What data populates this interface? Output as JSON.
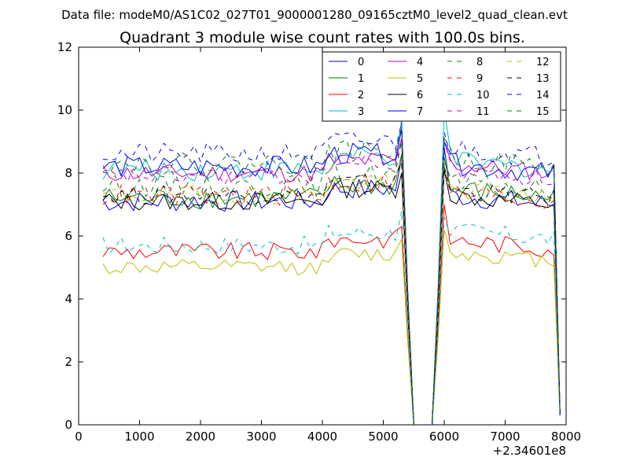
{
  "header": {
    "data_file": "Data file: modeM0/AS1C02_027T01_9000001280_09165cztM0_level2_quad_clean.evt"
  },
  "chart_data": {
    "type": "line",
    "title": "Quadrant 3 module wise count rates with 100.0s bins.",
    "xlabel": "",
    "ylabel": "",
    "x_offset_label": "+2.34601e8",
    "xlim": [
      0,
      8000
    ],
    "ylim": [
      0,
      12
    ],
    "xticks": [
      0,
      1000,
      2000,
      3000,
      4000,
      5000,
      6000,
      7000,
      8000
    ],
    "yticks": [
      0,
      2,
      4,
      6,
      8,
      10,
      12
    ],
    "grid": false,
    "legend_position": "top-right",
    "legend_columns": 4,
    "x": [
      400,
      500,
      600,
      700,
      800,
      900,
      1000,
      1100,
      1200,
      1300,
      1400,
      1500,
      1600,
      1700,
      1800,
      1900,
      2000,
      2100,
      2200,
      2300,
      2400,
      2500,
      2600,
      2700,
      2800,
      2900,
      3000,
      3100,
      3200,
      3300,
      3400,
      3500,
      3600,
      3700,
      3800,
      3900,
      4000,
      4100,
      4200,
      4300,
      4400,
      4500,
      4600,
      4700,
      4800,
      4900,
      5000,
      5100,
      5200,
      5300,
      5400,
      5500,
      5600,
      5700,
      5800,
      5900,
      6000,
      6100,
      6200,
      6300,
      6400,
      6500,
      6600,
      6700,
      6800,
      6900,
      7000,
      7100,
      7200,
      7300,
      7400,
      7500,
      7600,
      7700,
      7800,
      7900
    ],
    "gap_x": [
      5500,
      5800
    ],
    "series": [
      {
        "name": "0",
        "style": "solid",
        "color": "#0000ff",
        "base": 7.1,
        "noise": 0.35,
        "peak1": 8.5,
        "peak2": 8.8,
        "post": 7.0,
        "end": 6.6
      },
      {
        "name": "1",
        "style": "solid",
        "color": "#008000",
        "base": 7.2,
        "noise": 0.35,
        "peak1": 8.6,
        "peak2": 8.5,
        "post": 7.2,
        "end": 6.8
      },
      {
        "name": "2",
        "style": "solid",
        "color": "#ff0000",
        "base": 5.5,
        "noise": 0.3,
        "peak1": 6.3,
        "peak2": 7.0,
        "post": 5.6,
        "end": 5.2
      },
      {
        "name": "3",
        "style": "solid",
        "color": "#00bfbf",
        "base": 8.1,
        "noise": 0.35,
        "peak1": 9.7,
        "peak2": 10.0,
        "post": 8.1,
        "end": 7.6
      },
      {
        "name": "4",
        "style": "solid",
        "color": "#bf00bf",
        "base": 8.0,
        "noise": 0.3,
        "peak1": 9.1,
        "peak2": 9.0,
        "post": 8.0,
        "end": 7.5
      },
      {
        "name": "5",
        "style": "solid",
        "color": "#bfbf00",
        "base": 5.0,
        "noise": 0.25,
        "peak1": 5.9,
        "peak2": 6.2,
        "post": 5.2,
        "end": 4.8
      },
      {
        "name": "6",
        "style": "solid",
        "color": "#000000",
        "base": 7.1,
        "noise": 0.3,
        "peak1": 8.0,
        "peak2": 8.1,
        "post": 7.0,
        "end": 6.5
      },
      {
        "name": "7",
        "style": "solid",
        "color": "#0000ff",
        "base": 8.2,
        "noise": 0.35,
        "peak1": 9.4,
        "peak2": 9.0,
        "post": 8.0,
        "end": 7.6
      },
      {
        "name": "8",
        "style": "dashed",
        "color": "#008000",
        "base": 7.6,
        "noise": 0.35,
        "peak1": 9.0,
        "peak2": 8.4,
        "post": 7.4,
        "end": 7.0
      },
      {
        "name": "9",
        "style": "dashed",
        "color": "#ff0000",
        "base": 7.3,
        "noise": 0.35,
        "peak1": 8.3,
        "peak2": 8.2,
        "post": 7.1,
        "end": 6.9
      },
      {
        "name": "10",
        "style": "dashed",
        "color": "#00bfbf",
        "base": 5.7,
        "noise": 0.3,
        "peak1": 6.8,
        "peak2": 6.6,
        "post": 5.9,
        "end": 5.4
      },
      {
        "name": "11",
        "style": "dashed",
        "color": "#bf00bf",
        "base": 7.9,
        "noise": 0.3,
        "peak1": 9.1,
        "peak2": 9.0,
        "post": 7.8,
        "end": 7.4
      },
      {
        "name": "12",
        "style": "dashed",
        "color": "#bfbf00",
        "base": 7.3,
        "noise": 0.3,
        "peak1": 8.5,
        "peak2": 8.4,
        "post": 7.2,
        "end": 7.0
      },
      {
        "name": "13",
        "style": "dashed",
        "color": "#000000",
        "base": 7.3,
        "noise": 0.3,
        "peak1": 8.3,
        "peak2": 8.2,
        "post": 7.2,
        "end": 6.8
      },
      {
        "name": "14",
        "style": "dashed",
        "color": "#0000ff",
        "base": 8.6,
        "noise": 0.35,
        "peak1": 9.6,
        "peak2": 9.3,
        "post": 8.5,
        "end": 8.0
      },
      {
        "name": "15",
        "style": "dashed",
        "color": "#008000",
        "base": 8.3,
        "noise": 0.35,
        "peak1": 9.5,
        "peak2": 9.1,
        "post": 8.2,
        "end": 7.7
      }
    ]
  }
}
